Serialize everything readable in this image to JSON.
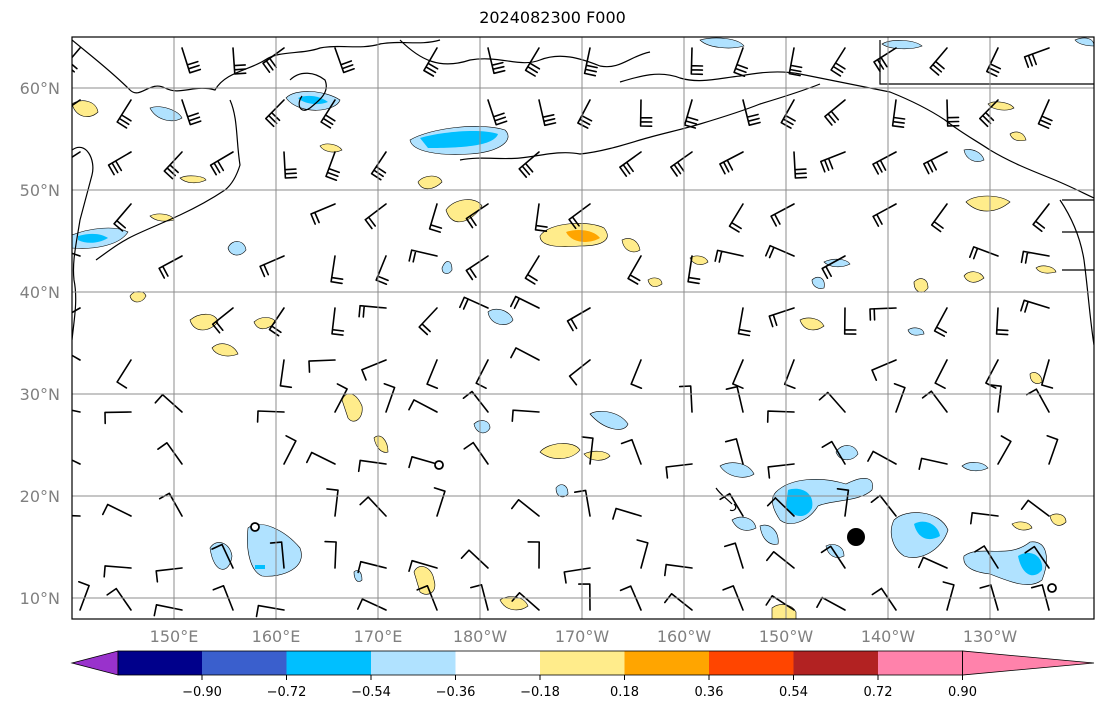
{
  "title": "2024082300 F000",
  "latitude_labels": [
    "60°N",
    "50°N",
    "40°N",
    "30°N",
    "20°N",
    "10°N"
  ],
  "longitude_labels": [
    "150°E",
    "160°E",
    "170°E",
    "180°W",
    "170°W",
    "160°W",
    "150°W",
    "140°W",
    "130°W"
  ],
  "colorbar": {
    "ticks": [
      "−0.90",
      "−0.72",
      "−0.54",
      "−0.36",
      "−0.18",
      "0.18",
      "0.36",
      "0.54",
      "0.72",
      "0.90"
    ],
    "colors": [
      "#9932cc",
      "#00008b",
      "#3a5fcd",
      "#00bfff",
      "#b0e2ff",
      "#ffffff",
      "#ffec8b",
      "#ffa500",
      "#ff4500",
      "#b22222",
      "#ff82ab"
    ]
  },
  "field_colors": {
    "neg_light": "#b0e2ff",
    "neg_mid": "#00bfff",
    "pos_light": "#ffec8b",
    "pos_mid": "#ffa500"
  }
}
